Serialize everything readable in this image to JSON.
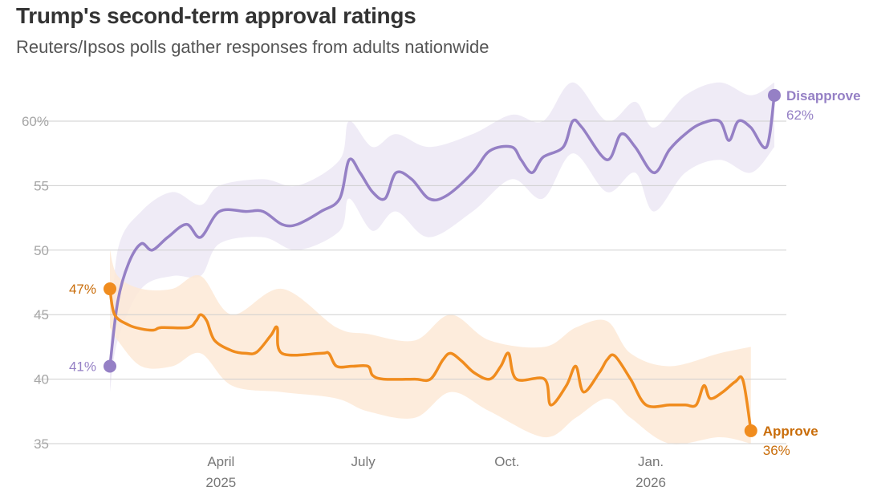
{
  "header": {
    "title": "Trump's second-term approval ratings",
    "subtitle": "Reuters/Ipsos polls gather responses from adults nationwide"
  },
  "colors": {
    "disapprove": "#9580c5",
    "disapprove_band": "#ece8f5",
    "approve": "#f08c1e",
    "approve_band": "#fde9d6",
    "approve_label": "#c96d0a",
    "grid": "#cfcfcf"
  },
  "chart_data": {
    "type": "line",
    "title": "Trump's second-term approval ratings",
    "subtitle": "Reuters/Ipsos polls gather responses from adults nationwide",
    "x_unit": "days since Jan 20, 2025",
    "x_range": [
      0,
      445
    ],
    "ylim": [
      35,
      63
    ],
    "y_ticks": [
      {
        "value": 35,
        "label": "35"
      },
      {
        "value": 40,
        "label": "40"
      },
      {
        "value": 45,
        "label": "45"
      },
      {
        "value": 50,
        "label": "50"
      },
      {
        "value": 55,
        "label": "55"
      },
      {
        "value": 60,
        "label": "60%"
      }
    ],
    "x_ticks": [
      {
        "day": 71,
        "label": "April",
        "sublabel": "2025"
      },
      {
        "day": 162,
        "label": "July",
        "sublabel": ""
      },
      {
        "day": 254,
        "label": "Oct.",
        "sublabel": ""
      },
      {
        "day": 346,
        "label": "Jan.",
        "sublabel": "2026"
      }
    ],
    "grid": true,
    "series": [
      {
        "name": "Disapprove",
        "start_label": "41%",
        "end_label": "62%",
        "points": [
          [
            0,
            41
          ],
          [
            5,
            46
          ],
          [
            12,
            49
          ],
          [
            20,
            50.5
          ],
          [
            27,
            50
          ],
          [
            37,
            51
          ],
          [
            49,
            52
          ],
          [
            58,
            51
          ],
          [
            70,
            53
          ],
          [
            87,
            53
          ],
          [
            98,
            53
          ],
          [
            110,
            52
          ],
          [
            120,
            52
          ],
          [
            135,
            53
          ],
          [
            147,
            54
          ],
          [
            153,
            57
          ],
          [
            160,
            56
          ],
          [
            168,
            54.5
          ],
          [
            176,
            54
          ],
          [
            183,
            56
          ],
          [
            193,
            55.5
          ],
          [
            204,
            54
          ],
          [
            215,
            54.2
          ],
          [
            232,
            56
          ],
          [
            243,
            57.7
          ],
          [
            257,
            58
          ],
          [
            263,
            57
          ],
          [
            270,
            56
          ],
          [
            277,
            57.2
          ],
          [
            290,
            58
          ],
          [
            296,
            60
          ],
          [
            302,
            59.5
          ],
          [
            318,
            57
          ],
          [
            327,
            59
          ],
          [
            336,
            58
          ],
          [
            348,
            56
          ],
          [
            358,
            57.8
          ],
          [
            368,
            59
          ],
          [
            378,
            59.8
          ],
          [
            390,
            60
          ],
          [
            396,
            58.5
          ],
          [
            402,
            60
          ],
          [
            410,
            59.5
          ],
          [
            420,
            58
          ],
          [
            425,
            62
          ]
        ],
        "band_upper": [
          [
            0,
            42
          ],
          [
            5,
            50
          ],
          [
            20,
            53
          ],
          [
            40,
            54.5
          ],
          [
            58,
            53.5
          ],
          [
            70,
            55
          ],
          [
            98,
            55.5
          ],
          [
            120,
            55
          ],
          [
            147,
            57
          ],
          [
            153,
            60
          ],
          [
            168,
            58
          ],
          [
            183,
            59
          ],
          [
            204,
            58
          ],
          [
            232,
            59
          ],
          [
            257,
            60.5
          ],
          [
            277,
            60
          ],
          [
            296,
            63
          ],
          [
            318,
            60
          ],
          [
            336,
            61.5
          ],
          [
            348,
            59.5
          ],
          [
            368,
            62
          ],
          [
            390,
            63
          ],
          [
            410,
            62
          ],
          [
            425,
            63
          ]
        ],
        "band_lower": [
          [
            0,
            39
          ],
          [
            5,
            43
          ],
          [
            20,
            47
          ],
          [
            40,
            48
          ],
          [
            58,
            48
          ],
          [
            70,
            50.5
          ],
          [
            98,
            51
          ],
          [
            120,
            50
          ],
          [
            147,
            51.5
          ],
          [
            153,
            54
          ],
          [
            168,
            51.5
          ],
          [
            183,
            53
          ],
          [
            204,
            51
          ],
          [
            232,
            53
          ],
          [
            257,
            55.5
          ],
          [
            277,
            54
          ],
          [
            296,
            57.5
          ],
          [
            318,
            54.5
          ],
          [
            336,
            56
          ],
          [
            348,
            53
          ],
          [
            368,
            56
          ],
          [
            390,
            57
          ],
          [
            410,
            56
          ],
          [
            425,
            58
          ]
        ]
      },
      {
        "name": "Approve",
        "start_label": "47%",
        "end_label": "36%",
        "points": [
          [
            0,
            47
          ],
          [
            3,
            45
          ],
          [
            12,
            44.2
          ],
          [
            20,
            43.9
          ],
          [
            28,
            43.8
          ],
          [
            33,
            44
          ],
          [
            50,
            44
          ],
          [
            55,
            44.5
          ],
          [
            58,
            45
          ],
          [
            62,
            44.5
          ],
          [
            67,
            43
          ],
          [
            78,
            42.2
          ],
          [
            87,
            42
          ],
          [
            94,
            42.1
          ],
          [
            103,
            43.4
          ],
          [
            107,
            44
          ],
          [
            110,
            42
          ],
          [
            135,
            42
          ],
          [
            140,
            42
          ],
          [
            145,
            41
          ],
          [
            155,
            41
          ],
          [
            165,
            41
          ],
          [
            168,
            40.3
          ],
          [
            175,
            40
          ],
          [
            195,
            40
          ],
          [
            205,
            40
          ],
          [
            213,
            41.5
          ],
          [
            218,
            42
          ],
          [
            225,
            41.4
          ],
          [
            233,
            40.5
          ],
          [
            243,
            40
          ],
          [
            250,
            41
          ],
          [
            255,
            42
          ],
          [
            260,
            40
          ],
          [
            278,
            40
          ],
          [
            282,
            38
          ],
          [
            292,
            39.5
          ],
          [
            298,
            41
          ],
          [
            303,
            39
          ],
          [
            313,
            40.5
          ],
          [
            318,
            41.5
          ],
          [
            323,
            41.8
          ],
          [
            333,
            40
          ],
          [
            343,
            38
          ],
          [
            358,
            38
          ],
          [
            368,
            38
          ],
          [
            375,
            38
          ],
          [
            380,
            39.5
          ],
          [
            384,
            38.5
          ],
          [
            392,
            39
          ],
          [
            400,
            39.8
          ],
          [
            405,
            39.9
          ],
          [
            410,
            36
          ]
        ],
        "band_upper": [
          [
            0,
            50
          ],
          [
            5,
            48
          ],
          [
            20,
            47
          ],
          [
            40,
            47
          ],
          [
            58,
            48
          ],
          [
            78,
            45
          ],
          [
            110,
            47
          ],
          [
            145,
            44
          ],
          [
            165,
            43.5
          ],
          [
            195,
            43
          ],
          [
            218,
            45
          ],
          [
            243,
            43
          ],
          [
            278,
            42.5
          ],
          [
            298,
            44
          ],
          [
            318,
            44.5
          ],
          [
            333,
            42
          ],
          [
            358,
            41
          ],
          [
            390,
            42
          ],
          [
            410,
            42.5
          ]
        ],
        "band_lower": [
          [
            0,
            44
          ],
          [
            5,
            43
          ],
          [
            20,
            41
          ],
          [
            40,
            41
          ],
          [
            58,
            42
          ],
          [
            78,
            39.5
          ],
          [
            110,
            39
          ],
          [
            145,
            38.5
          ],
          [
            165,
            37.5
          ],
          [
            195,
            37
          ],
          [
            218,
            39
          ],
          [
            243,
            37.5
          ],
          [
            278,
            35.5
          ],
          [
            298,
            37
          ],
          [
            318,
            38.5
          ],
          [
            333,
            37
          ],
          [
            358,
            35
          ],
          [
            390,
            35.5
          ],
          [
            410,
            35
          ]
        ]
      }
    ]
  }
}
